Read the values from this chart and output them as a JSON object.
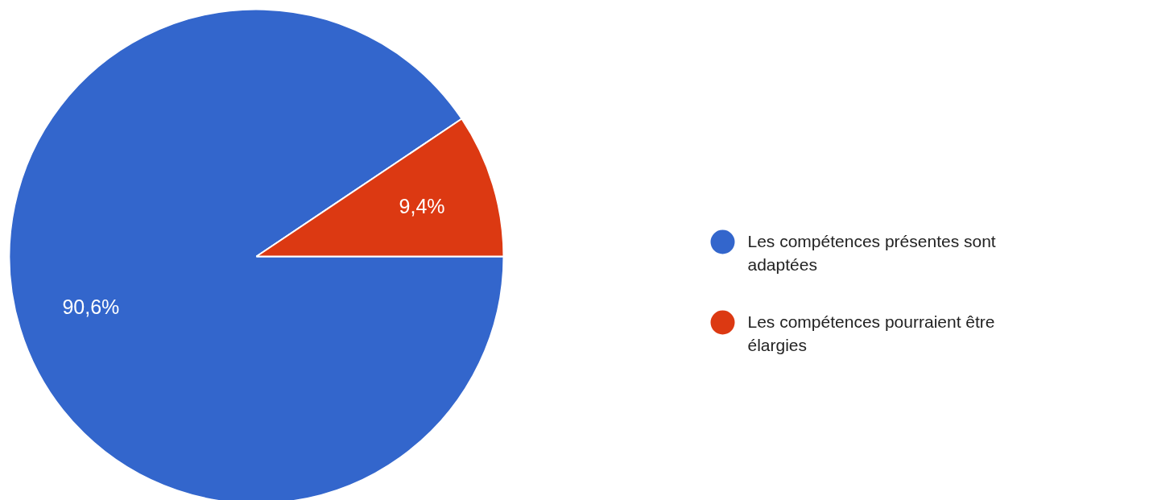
{
  "chart_data": {
    "type": "pie",
    "categories": [
      "Les compétences présentes sont adaptées",
      "Les compétences pourraient être élargies"
    ],
    "values": [
      90.6,
      9.4
    ],
    "colors": [
      "#3366cc",
      "#dc3912"
    ],
    "value_labels": [
      "90,6%",
      "9,4%"
    ],
    "legend": "right"
  }
}
